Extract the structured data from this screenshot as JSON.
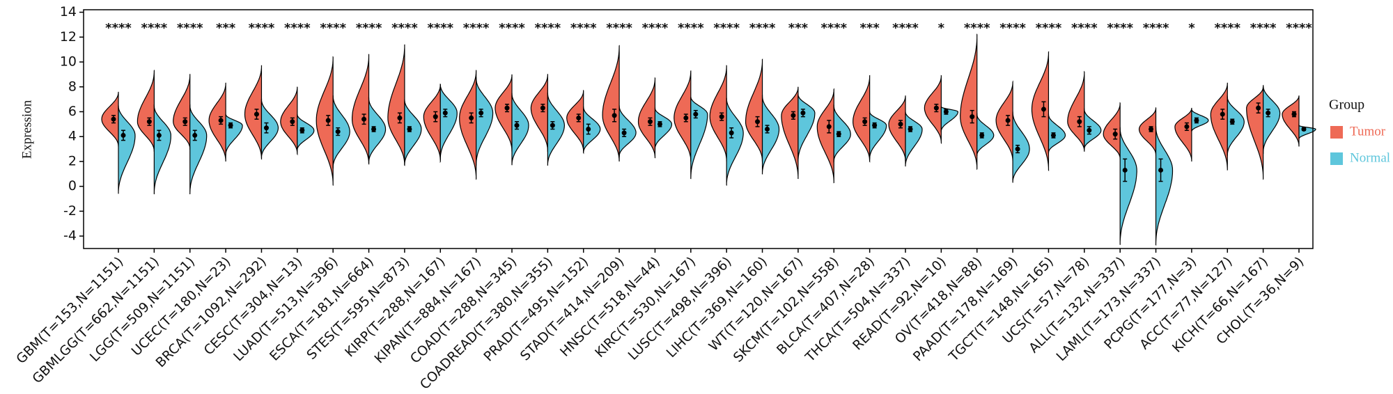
{
  "chart_data": {
    "type": "split-violin",
    "y_label": "Expression",
    "legend_title": "Group",
    "legend_position": "right",
    "categories": [
      "GBM(T=153,N=1151)",
      "GBMLGG(T=662,N=1151)",
      "LGG(T=509,N=1151)",
      "UCEC(T=180,N=23)",
      "BRCA(T=1092,N=292)",
      "CESC(T=304,N=13)",
      "LUAD(T=513,N=396)",
      "ESCA(T=181,N=664)",
      "STES(T=595,N=873)",
      "KIRP(T=288,N=167)",
      "KIPAN(T=884,N=167)",
      "COAD(T=288,N=345)",
      "COADREAD(T=380,N=355)",
      "PRAD(T=495,N=152)",
      "STAD(T=414,N=209)",
      "HNSC(T=518,N=44)",
      "KIRC(T=530,N=167)",
      "LUSC(T=498,N=396)",
      "LIHC(T=369,N=160)",
      "WT(T=120,N=167)",
      "SKCM(T=102,N=558)",
      "BLCA(T=407,N=28)",
      "THCA(T=504,N=337)",
      "READ(T=92,N=10)",
      "OV(T=418,N=88)",
      "PAAD(T=178,N=169)",
      "TGCT(T=148,N=165)",
      "UCS(T=57,N=78)",
      "ALL(T=132,N=337)",
      "LAML(T=173,N=337)",
      "PCPG(T=177,N=3)",
      "ACC(T=77,N=127)",
      "KICH(T=66,N=167)",
      "CHOL(T=36,N=9)"
    ],
    "significance": [
      "****",
      "****",
      "****",
      "***",
      "****",
      "****",
      "****",
      "****",
      "****",
      "****",
      "****",
      "****",
      "****",
      "****",
      "****",
      "****",
      "****",
      "****",
      "****",
      "***",
      "****",
      "***",
      "****",
      "*",
      "****",
      "****",
      "****",
      "****",
      "****",
      "****",
      "*",
      "****",
      "****",
      "****"
    ],
    "series": [
      {
        "name": "Tumor",
        "color": "#ee6a56",
        "values": [
          5.4,
          5.2,
          5.2,
          5.3,
          5.8,
          5.2,
          5.3,
          5.4,
          5.5,
          5.6,
          5.5,
          6.3,
          6.3,
          5.5,
          5.7,
          5.2,
          5.5,
          5.6,
          5.2,
          5.7,
          4.8,
          5.2,
          5.0,
          6.3,
          5.6,
          5.3,
          6.2,
          5.2,
          4.2,
          4.6,
          4.8,
          5.8,
          6.3,
          5.8
        ],
        "errors": [
          0.3,
          0.3,
          0.3,
          0.3,
          0.4,
          0.3,
          0.4,
          0.4,
          0.4,
          0.4,
          0.4,
          0.3,
          0.3,
          0.3,
          0.5,
          0.3,
          0.3,
          0.3,
          0.4,
          0.3,
          0.5,
          0.3,
          0.3,
          0.3,
          0.5,
          0.4,
          0.6,
          0.4,
          0.4,
          0.2,
          0.3,
          0.4,
          0.4,
          0.2
        ],
        "mins": [
          3.2,
          2.8,
          3.0,
          2.0,
          2.2,
          2.6,
          0.1,
          1.8,
          1.7,
          2.0,
          0.6,
          2.8,
          2.8,
          2.8,
          2.0,
          2.3,
          2.0,
          2.0,
          2.0,
          0.6,
          0.3,
          2.0,
          2.0,
          3.5,
          1.4,
          2.0,
          1.3,
          2.8,
          2.2,
          2.5,
          2.0,
          1.3,
          0.6,
          3.2
        ],
        "maxs": [
          7.6,
          9.3,
          9.0,
          8.3,
          9.7,
          8.0,
          10.4,
          10.6,
          11.4,
          8.2,
          9.3,
          9.0,
          9.0,
          7.7,
          11.3,
          8.7,
          9.3,
          9.7,
          10.2,
          8.0,
          7.8,
          8.9,
          7.3,
          8.9,
          12.2,
          8.4,
          10.8,
          9.2,
          6.7,
          6.3,
          6.3,
          8.3,
          8.0,
          7.3
        ]
      },
      {
        "name": "Normal",
        "color": "#5ec6dc",
        "values": [
          4.1,
          4.1,
          4.1,
          4.9,
          4.7,
          4.5,
          4.4,
          4.6,
          4.6,
          5.9,
          5.9,
          4.9,
          4.9,
          4.6,
          4.3,
          5.0,
          5.8,
          4.3,
          4.6,
          5.9,
          4.2,
          4.9,
          4.6,
          6.0,
          4.1,
          3.0,
          4.1,
          4.5,
          1.3,
          1.3,
          5.3,
          5.2,
          5.9,
          4.6
        ],
        "errors": [
          0.4,
          0.4,
          0.4,
          0.2,
          0.4,
          0.2,
          0.3,
          0.2,
          0.2,
          0.3,
          0.3,
          0.3,
          0.3,
          0.4,
          0.3,
          0.2,
          0.3,
          0.4,
          0.3,
          0.3,
          0.2,
          0.2,
          0.2,
          0.2,
          0.2,
          0.3,
          0.2,
          0.3,
          0.9,
          0.9,
          0.2,
          0.2,
          0.3,
          0.1
        ],
        "mins": [
          -0.6,
          -0.6,
          -0.6,
          2.5,
          2.3,
          2.9,
          1.5,
          1.9,
          1.7,
          2.2,
          1.7,
          1.7,
          1.7,
          2.7,
          2.4,
          3.0,
          0.6,
          0.1,
          1.0,
          2.0,
          2.0,
          2.2,
          1.6,
          4.4,
          2.5,
          0.3,
          2.7,
          3.0,
          -4.7,
          -4.7,
          4.4,
          2.5,
          2.7,
          3.8
        ],
        "maxs": [
          6.5,
          6.5,
          6.5,
          5.8,
          7.0,
          5.8,
          7.3,
          7.1,
          7.0,
          8.2,
          8.7,
          7.5,
          7.5,
          6.4,
          6.5,
          6.3,
          7.2,
          7.1,
          7.3,
          7.4,
          6.5,
          6.0,
          6.0,
          6.4,
          5.8,
          6.0,
          5.8,
          6.2,
          4.7,
          4.8,
          6.2,
          7.2,
          8.1,
          4.9
        ]
      }
    ],
    "ylim": [
      -5,
      14.2
    ],
    "yticks": [
      -4,
      -2,
      0,
      2,
      4,
      6,
      8,
      10,
      12,
      14
    ],
    "significance_y": 12.9
  }
}
